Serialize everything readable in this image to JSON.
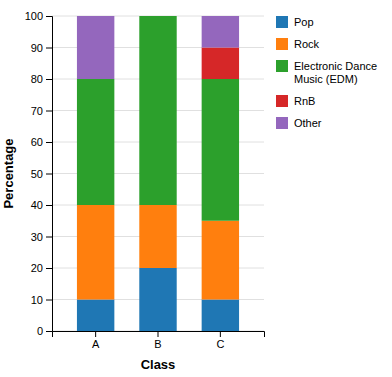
{
  "chart_data": {
    "type": "bar",
    "stacked": true,
    "categories": [
      "A",
      "B",
      "C"
    ],
    "series": [
      {
        "name": "Pop",
        "values": [
          10,
          20,
          10
        ]
      },
      {
        "name": "Rock",
        "values": [
          30,
          20,
          25
        ]
      },
      {
        "name": "Electronic Dance\nMusic (EDM)",
        "values": [
          40,
          60,
          45
        ]
      },
      {
        "name": "RnB",
        "values": [
          0,
          0,
          10
        ]
      },
      {
        "name": "Other",
        "values": [
          20,
          0,
          10
        ]
      }
    ],
    "x_label": "Class",
    "y_label": "Percentage",
    "ylim": [
      0,
      100
    ],
    "yticks": [
      0,
      10,
      20,
      30,
      40,
      50,
      60,
      70,
      80,
      90,
      100
    ],
    "grid": true,
    "legend": "right"
  }
}
